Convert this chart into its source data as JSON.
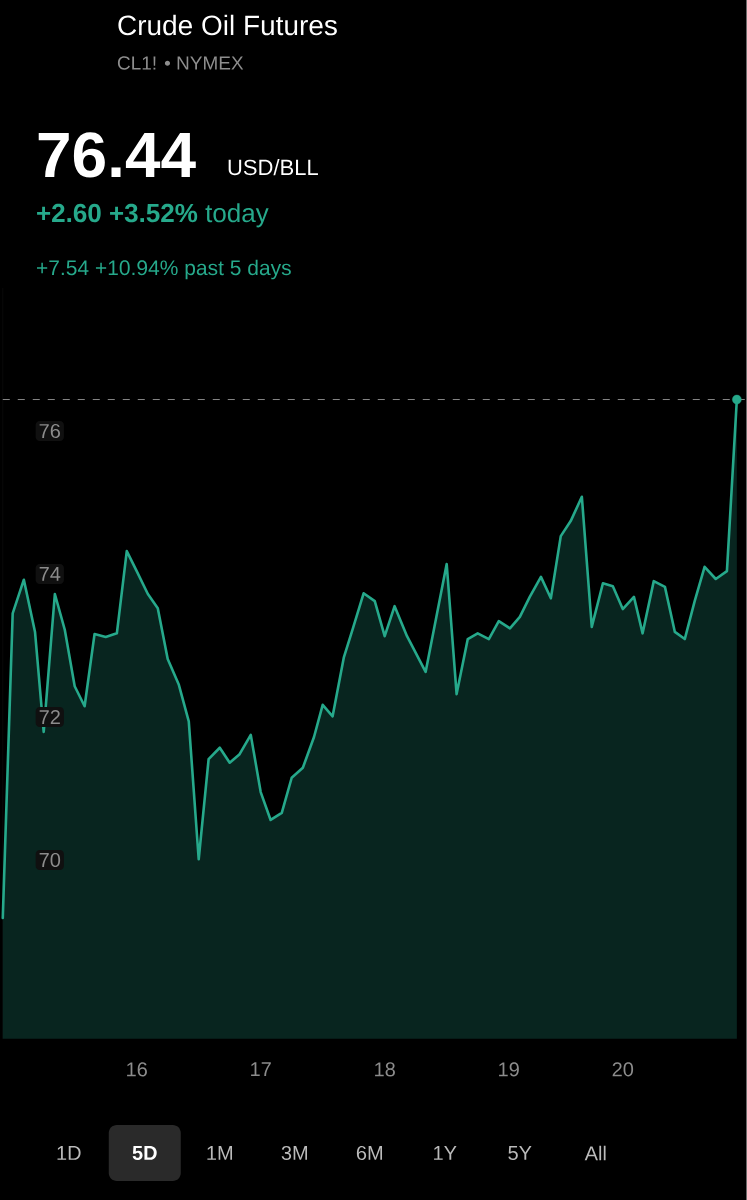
{
  "chart_data": {
    "type": "area",
    "title": "Crude Oil Futures",
    "subtitle": "CL1! • NYMEX",
    "annotations": [
      "76.44",
      "USD/BLL",
      "**+2.60 +3.52%** today",
      "+7.54 +10.94% past 5 days",
      "1D",
      "5D",
      "1M",
      "3M",
      "6M",
      "1Y",
      "5Y",
      "All"
    ],
    "x": [
      14.92,
      15.0,
      15.09,
      15.18,
      15.25,
      15.34,
      15.42,
      15.5,
      15.58,
      15.66,
      15.75,
      15.84,
      15.92,
      16.0,
      16.09,
      16.17,
      16.25,
      16.34,
      16.42,
      16.5,
      16.58,
      16.67,
      16.75,
      16.83,
      16.92,
      17.0,
      17.08,
      17.17,
      17.25,
      17.34,
      17.43,
      17.5,
      17.58,
      17.67,
      17.74,
      17.83,
      17.92,
      18.0,
      18.08,
      18.18,
      18.33,
      18.5,
      18.58,
      18.67,
      18.75,
      18.84,
      18.92,
      19.01,
      19.09,
      19.17,
      19.26,
      19.34,
      19.42,
      19.5,
      19.59,
      19.67,
      19.76,
      19.84,
      19.92,
      20.01,
      20.08,
      20.17,
      20.26,
      20.34,
      20.42,
      20.5,
      20.58,
      20.67,
      20.76,
      20.84
    ],
    "series": [
      {
        "color": "#26a98b",
        "values": [
          69.19,
          73.45,
          73.92,
          73.19,
          71.79,
          73.72,
          73.22,
          72.43,
          72.15,
          73.16,
          73.12,
          73.17,
          74.32,
          74.04,
          73.72,
          73.52,
          72.81,
          72.45,
          71.94,
          70.01,
          71.41,
          71.57,
          71.36,
          71.48,
          71.75,
          70.95,
          70.56,
          70.66,
          71.15,
          71.29,
          71.72,
          72.17,
          72.01,
          72.83,
          73.22,
          73.73,
          73.62,
          73.13,
          73.55,
          73.13,
          72.63,
          74.14,
          72.32,
          73.09,
          73.17,
          73.09,
          73.34,
          73.24,
          73.4,
          73.68,
          73.96,
          73.66,
          74.53,
          74.74,
          75.08,
          73.26,
          73.87,
          73.83,
          73.51,
          73.68,
          73.17,
          73.9,
          73.82,
          73.19,
          73.09,
          73.62,
          74.1,
          73.93,
          74.04,
          76.44
        ]
      },
      {
        "type": "scatter",
        "color": "#26a98b",
        "marker": "circle",
        "x": [
          20.84
        ],
        "values": [
          76.44
        ]
      }
    ],
    "xlim": [
      14.92,
      20.92
    ],
    "ylim": [
      67.5,
      78
    ],
    "xticks": [
      16,
      17,
      18,
      19,
      {
        "value": 19.92,
        "label": "20"
      }
    ],
    "yticks": [
      70,
      72,
      74,
      76
    ],
    "ref_lines": [
      {
        "axis": "y",
        "value": 76.44,
        "color": "#8a8a8a",
        "line_style": "dashed"
      }
    ]
  }
}
